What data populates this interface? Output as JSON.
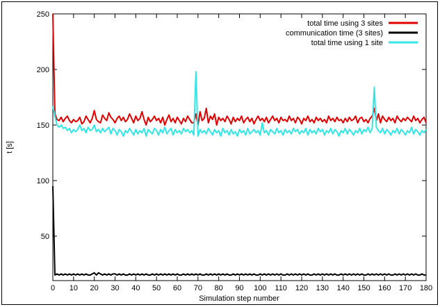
{
  "chart_data": {
    "type": "line",
    "title": "",
    "xlabel": "Simulation step number",
    "ylabel": "t [s]",
    "xlim": [
      0,
      180
    ],
    "ylim": [
      10,
      250
    ],
    "xticks": [
      0,
      10,
      20,
      30,
      40,
      50,
      60,
      70,
      80,
      90,
      100,
      110,
      120,
      130,
      140,
      150,
      160,
      170,
      180
    ],
    "yticks": [
      50,
      100,
      150,
      200,
      250
    ],
    "grid": false,
    "legend": "top-right",
    "series": [
      {
        "name": "total time using 3 sites",
        "color": "#e00000",
        "values": [
          250,
          160,
          155,
          154,
          157,
          153,
          156,
          158,
          154,
          152,
          155,
          153,
          154,
          157,
          151,
          153,
          158,
          155,
          152,
          156,
          163,
          155,
          153,
          152,
          159,
          156,
          154,
          161,
          157,
          155,
          152,
          156,
          158,
          154,
          157,
          153,
          155,
          160,
          156,
          152,
          158,
          154,
          156,
          162,
          155,
          150,
          157,
          153,
          155,
          158,
          154,
          156,
          152,
          157,
          150,
          155,
          159,
          153,
          156,
          152,
          157,
          154,
          151,
          156,
          153,
          158,
          155,
          152,
          152,
          160,
          150,
          162,
          154,
          156,
          165,
          152,
          158,
          155,
          160,
          150,
          157,
          154,
          156,
          153,
          158,
          155,
          151,
          157,
          153,
          156,
          154,
          158,
          152,
          155,
          157,
          153,
          156,
          151,
          155,
          158,
          154,
          156,
          153,
          157,
          152,
          155,
          158,
          154,
          156,
          152,
          157,
          154,
          155,
          153,
          158,
          154,
          156,
          152,
          157,
          155,
          151,
          156,
          154,
          158,
          153,
          155,
          152,
          157,
          154,
          156,
          153,
          155,
          152,
          158,
          154,
          156,
          153,
          157,
          154,
          155,
          152,
          156,
          153,
          157,
          154,
          155,
          158,
          152,
          156,
          157,
          153,
          155,
          152,
          156,
          158,
          165,
          154,
          160,
          152,
          158,
          155,
          153,
          157,
          154,
          156,
          152,
          158,
          155,
          153,
          156,
          154,
          157,
          155,
          153,
          158,
          154,
          156,
          152,
          155,
          157,
          152
        ]
      },
      {
        "name": "communication time (3 sites)",
        "color": "#000000",
        "values": [
          95,
          15,
          16,
          15,
          16,
          15,
          16,
          15,
          16,
          15,
          16,
          15,
          16,
          15,
          16,
          15,
          16,
          15,
          15,
          16,
          17,
          15,
          17,
          16,
          15,
          16,
          15,
          16,
          15,
          16,
          16,
          15,
          16,
          15,
          16,
          15,
          15,
          16,
          15,
          16,
          15,
          16,
          15,
          16,
          15,
          16,
          15,
          15,
          16,
          15,
          16,
          15,
          16,
          15,
          16,
          15,
          16,
          15,
          16,
          15,
          16,
          15,
          15,
          16,
          15,
          16,
          15,
          16,
          15,
          16,
          15,
          16,
          15,
          15,
          16,
          15,
          16,
          15,
          16,
          15,
          16,
          15,
          16,
          15,
          16,
          15,
          15,
          16,
          15,
          16,
          15,
          16,
          15,
          16,
          15,
          16,
          15,
          16,
          15,
          15,
          16,
          15,
          16,
          15,
          16,
          15,
          16,
          15,
          16,
          15,
          16,
          15,
          15,
          16,
          15,
          16,
          15,
          16,
          15,
          16,
          15,
          16,
          15,
          16,
          15,
          15,
          16,
          15,
          16,
          15,
          16,
          15,
          16,
          15,
          16,
          15,
          16,
          15,
          15,
          16,
          15,
          16,
          15,
          16,
          15,
          16,
          15,
          16,
          15,
          16,
          15,
          15,
          16,
          15,
          16,
          15,
          16,
          15,
          16,
          15,
          16,
          15,
          16,
          15,
          15,
          16,
          15,
          16,
          15,
          16,
          15,
          16,
          15,
          16,
          15,
          16,
          15,
          15,
          16,
          15,
          15
        ]
      },
      {
        "name": "total time using 1 site",
        "color": "#33e6e6",
        "values": [
          167,
          158,
          150,
          148,
          150,
          147,
          148,
          145,
          147,
          143,
          146,
          144,
          146,
          150,
          145,
          147,
          143,
          148,
          145,
          146,
          150,
          144,
          146,
          143,
          147,
          144,
          146,
          148,
          142,
          147,
          145,
          141,
          146,
          144,
          140,
          145,
          143,
          147,
          144,
          141,
          146,
          142,
          145,
          143,
          147,
          140,
          146,
          144,
          142,
          147,
          145,
          141,
          146,
          143,
          148,
          142,
          145,
          147,
          141,
          146,
          143,
          145,
          142,
          147,
          144,
          146,
          143,
          145,
          141,
          198,
          140,
          146,
          143,
          145,
          142,
          147,
          144,
          141,
          146,
          143,
          145,
          140,
          147,
          143,
          145,
          141,
          146,
          142,
          144,
          140,
          146,
          143,
          145,
          141,
          147,
          142,
          144,
          146,
          143,
          145,
          141,
          152,
          143,
          145,
          141,
          146,
          144,
          142,
          147,
          143,
          145,
          141,
          146,
          143,
          145,
          142,
          147,
          144,
          146,
          142,
          145,
          143,
          147,
          141,
          146,
          143,
          145,
          142,
          147,
          144,
          146,
          141,
          145,
          143,
          147,
          142,
          146,
          144,
          140,
          145,
          143,
          147,
          142,
          146,
          144,
          141,
          145,
          143,
          147,
          142,
          146,
          144,
          148,
          143,
          147,
          184,
          148,
          145,
          143,
          147,
          142,
          146,
          144,
          141,
          145,
          143,
          147,
          142,
          146,
          144,
          141,
          145,
          143,
          148,
          142,
          146,
          144,
          141,
          145,
          143,
          146
        ]
      }
    ]
  }
}
